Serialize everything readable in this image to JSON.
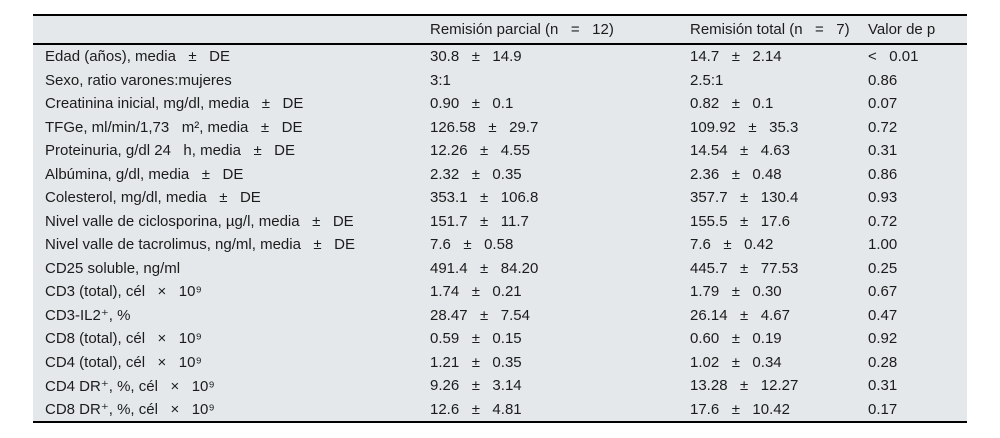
{
  "table": {
    "bg_color": "#e4e8ea",
    "rule_color": "#000000",
    "header": {
      "label": "",
      "parcial": "Remisión parcial (n   =   12)",
      "total": "Remisión total (n   =   7)",
      "p": "Valor de p"
    },
    "rows": [
      {
        "label": "Edad (años), media   ±   DE",
        "parcial": "30.8   ±   14.9",
        "total": "14.7   ±   2.14",
        "p": "<   0.01"
      },
      {
        "label": "Sexo, ratio varones:mujeres",
        "parcial": "3:1",
        "total": "2.5:1",
        "p": "0.86"
      },
      {
        "label": "Creatinina inicial, mg/dl, media   ±   DE",
        "parcial": "0.90   ±   0.1",
        "total": "0.82   ±   0.1",
        "p": "0.07"
      },
      {
        "label": "TFGe, ml/min/1,73   m², media   ±   DE",
        "parcial": "126.58   ±   29.7",
        "total": "109.92   ±   35.3",
        "p": "0.72"
      },
      {
        "label": "Proteinuria, g/dl 24   h, media   ±   DE",
        "parcial": "12.26   ±   4.55",
        "total": "14.54   ±   4.63",
        "p": "0.31"
      },
      {
        "label": "Albúmina, g/dl, media   ±   DE",
        "parcial": "2.32   ±   0.35",
        "total": "2.36   ±   0.48",
        "p": "0.86"
      },
      {
        "label": "Colesterol, mg/dl, media   ±   DE",
        "parcial": "353.1   ±   106.8",
        "total": "357.7   ±   130.4",
        "p": "0.93"
      },
      {
        "label": "Nivel valle de ciclosporina, µg/l, media   ±   DE",
        "parcial": "151.7   ±   11.7",
        "total": "155.5   ±   17.6",
        "p": "0.72"
      },
      {
        "label": "Nivel valle de tacrolimus, ng/ml, media   ±   DE",
        "parcial": "7.6   ±   0.58",
        "total": "7.6   ±   0.42",
        "p": "1.00"
      },
      {
        "label": "CD25 soluble, ng/ml",
        "parcial": "491.4   ±   84.20",
        "total": "445.7   ±   77.53",
        "p": "0.25"
      },
      {
        "label": "CD3 (total), cél   ×   10⁹",
        "parcial": "1.74   ±   0.21",
        "total": "1.79   ±   0.30",
        "p": "0.67"
      },
      {
        "label": "CD3-IL2⁺, %",
        "parcial": "28.47   ±   7.54",
        "total": "26.14   ±   4.67",
        "p": "0.47"
      },
      {
        "label": "CD8 (total), cél   ×   10⁹",
        "parcial": "0.59   ±   0.15",
        "total": "0.60   ±   0.19",
        "p": "0.92"
      },
      {
        "label": "CD4 (total), cél   ×   10⁹",
        "parcial": "1.21   ±   0.35",
        "total": "1.02   ±   0.34",
        "p": "0.28"
      },
      {
        "label": "CD4 DR⁺, %, cél   ×   10⁹",
        "parcial": "9.26   ±   3.14",
        "total": "13.28   ±   12.27",
        "p": "0.31"
      },
      {
        "label": "CD8 DR⁺, %, cél   ×   10⁹",
        "parcial": "12.6   ±   4.81",
        "total": "17.6   ±   10.42",
        "p": "0.17"
      }
    ]
  }
}
